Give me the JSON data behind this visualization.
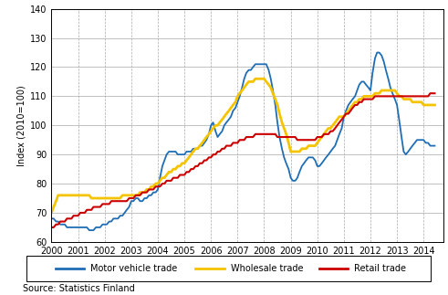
{
  "title": "",
  "xlabel": "",
  "ylabel": "Index (2010=100)",
  "source": "Source: Statistics Finland",
  "ylim": [
    60,
    140
  ],
  "yticks": [
    60,
    70,
    80,
    90,
    100,
    110,
    120,
    130,
    140
  ],
  "xlim": [
    2000,
    2014.75
  ],
  "xtick_years": [
    2000,
    2001,
    2002,
    2003,
    2004,
    2005,
    2006,
    2007,
    2008,
    2009,
    2010,
    2011,
    2012,
    2013,
    2014
  ],
  "motor_vehicle_color": "#1f6eb5",
  "wholesale_color": "#f5c400",
  "retail_color": "#cc0000",
  "motor_vehicle_x": [
    2000.0,
    2000.08,
    2000.17,
    2000.25,
    2000.33,
    2000.42,
    2000.5,
    2000.58,
    2000.67,
    2000.75,
    2000.83,
    2000.92,
    2001.0,
    2001.08,
    2001.17,
    2001.25,
    2001.33,
    2001.42,
    2001.5,
    2001.58,
    2001.67,
    2001.75,
    2001.83,
    2001.92,
    2002.0,
    2002.08,
    2002.17,
    2002.25,
    2002.33,
    2002.42,
    2002.5,
    2002.58,
    2002.67,
    2002.75,
    2002.83,
    2002.92,
    2003.0,
    2003.08,
    2003.17,
    2003.25,
    2003.33,
    2003.42,
    2003.5,
    2003.58,
    2003.67,
    2003.75,
    2003.83,
    2003.92,
    2004.0,
    2004.08,
    2004.17,
    2004.25,
    2004.33,
    2004.42,
    2004.5,
    2004.58,
    2004.67,
    2004.75,
    2004.83,
    2004.92,
    2005.0,
    2005.08,
    2005.17,
    2005.25,
    2005.33,
    2005.42,
    2005.5,
    2005.58,
    2005.67,
    2005.75,
    2005.83,
    2005.92,
    2006.0,
    2006.08,
    2006.17,
    2006.25,
    2006.33,
    2006.42,
    2006.5,
    2006.58,
    2006.67,
    2006.75,
    2006.83,
    2006.92,
    2007.0,
    2007.08,
    2007.17,
    2007.25,
    2007.33,
    2007.42,
    2007.5,
    2007.58,
    2007.67,
    2007.75,
    2007.83,
    2007.92,
    2008.0,
    2008.08,
    2008.17,
    2008.25,
    2008.33,
    2008.42,
    2008.5,
    2008.58,
    2008.67,
    2008.75,
    2008.83,
    2008.92,
    2009.0,
    2009.08,
    2009.17,
    2009.25,
    2009.33,
    2009.42,
    2009.5,
    2009.58,
    2009.67,
    2009.75,
    2009.83,
    2009.92,
    2010.0,
    2010.08,
    2010.17,
    2010.25,
    2010.33,
    2010.42,
    2010.5,
    2010.58,
    2010.67,
    2010.75,
    2010.83,
    2010.92,
    2011.0,
    2011.08,
    2011.17,
    2011.25,
    2011.33,
    2011.42,
    2011.5,
    2011.58,
    2011.67,
    2011.75,
    2011.83,
    2011.92,
    2012.0,
    2012.08,
    2012.17,
    2012.25,
    2012.33,
    2012.42,
    2012.5,
    2012.58,
    2012.67,
    2012.75,
    2012.83,
    2012.92,
    2013.0,
    2013.08,
    2013.17,
    2013.25,
    2013.33,
    2013.42,
    2013.5,
    2013.58,
    2013.67,
    2013.75,
    2013.83,
    2013.92,
    2014.0,
    2014.08,
    2014.17,
    2014.25,
    2014.33,
    2014.42
  ],
  "motor_vehicle_y": [
    68,
    68,
    67,
    67,
    66,
    66,
    66,
    65,
    65,
    65,
    65,
    65,
    65,
    65,
    65,
    65,
    65,
    64,
    64,
    64,
    65,
    65,
    65,
    66,
    66,
    66,
    67,
    67,
    68,
    68,
    68,
    69,
    69,
    70,
    71,
    72,
    74,
    74,
    75,
    75,
    74,
    74,
    75,
    75,
    76,
    76,
    77,
    77,
    78,
    82,
    86,
    88,
    90,
    91,
    91,
    91,
    91,
    90,
    90,
    90,
    90,
    91,
    91,
    91,
    92,
    92,
    92,
    93,
    93,
    94,
    95,
    97,
    100,
    101,
    98,
    96,
    97,
    98,
    100,
    101,
    102,
    103,
    105,
    106,
    108,
    110,
    113,
    116,
    118,
    119,
    119,
    120,
    121,
    121,
    121,
    121,
    121,
    121,
    119,
    116,
    112,
    107,
    101,
    96,
    92,
    89,
    87,
    85,
    82,
    81,
    81,
    82,
    84,
    86,
    87,
    88,
    89,
    89,
    89,
    88,
    86,
    86,
    87,
    88,
    89,
    90,
    91,
    92,
    93,
    95,
    97,
    99,
    103,
    105,
    107,
    108,
    109,
    110,
    112,
    114,
    115,
    115,
    114,
    113,
    112,
    118,
    123,
    125,
    125,
    124,
    122,
    119,
    116,
    113,
    111,
    109,
    107,
    102,
    96,
    91,
    90,
    91,
    92,
    93,
    94,
    95,
    95,
    95,
    95,
    94,
    94,
    93,
    93,
    93
  ],
  "wholesale_x": [
    2000.0,
    2000.08,
    2000.17,
    2000.25,
    2000.33,
    2000.42,
    2000.5,
    2000.58,
    2000.67,
    2000.75,
    2000.83,
    2000.92,
    2001.0,
    2001.08,
    2001.17,
    2001.25,
    2001.33,
    2001.42,
    2001.5,
    2001.58,
    2001.67,
    2001.75,
    2001.83,
    2001.92,
    2002.0,
    2002.08,
    2002.17,
    2002.25,
    2002.33,
    2002.42,
    2002.5,
    2002.58,
    2002.67,
    2002.75,
    2002.83,
    2002.92,
    2003.0,
    2003.08,
    2003.17,
    2003.25,
    2003.33,
    2003.42,
    2003.5,
    2003.58,
    2003.67,
    2003.75,
    2003.83,
    2003.92,
    2004.0,
    2004.08,
    2004.17,
    2004.25,
    2004.33,
    2004.42,
    2004.5,
    2004.58,
    2004.67,
    2004.75,
    2004.83,
    2004.92,
    2005.0,
    2005.08,
    2005.17,
    2005.25,
    2005.33,
    2005.42,
    2005.5,
    2005.58,
    2005.67,
    2005.75,
    2005.83,
    2005.92,
    2006.0,
    2006.08,
    2006.17,
    2006.25,
    2006.33,
    2006.42,
    2006.5,
    2006.58,
    2006.67,
    2006.75,
    2006.83,
    2006.92,
    2007.0,
    2007.08,
    2007.17,
    2007.25,
    2007.33,
    2007.42,
    2007.5,
    2007.58,
    2007.67,
    2007.75,
    2007.83,
    2007.92,
    2008.0,
    2008.08,
    2008.17,
    2008.25,
    2008.33,
    2008.42,
    2008.5,
    2008.58,
    2008.67,
    2008.75,
    2008.83,
    2008.92,
    2009.0,
    2009.08,
    2009.17,
    2009.25,
    2009.33,
    2009.42,
    2009.5,
    2009.58,
    2009.67,
    2009.75,
    2009.83,
    2009.92,
    2010.0,
    2010.08,
    2010.17,
    2010.25,
    2010.33,
    2010.42,
    2010.5,
    2010.58,
    2010.67,
    2010.75,
    2010.83,
    2010.92,
    2011.0,
    2011.08,
    2011.17,
    2011.25,
    2011.33,
    2011.42,
    2011.5,
    2011.58,
    2011.67,
    2011.75,
    2011.83,
    2011.92,
    2012.0,
    2012.08,
    2012.17,
    2012.25,
    2012.33,
    2012.42,
    2012.5,
    2012.58,
    2012.67,
    2012.75,
    2012.83,
    2012.92,
    2013.0,
    2013.08,
    2013.17,
    2013.25,
    2013.33,
    2013.42,
    2013.5,
    2013.58,
    2013.67,
    2013.75,
    2013.83,
    2013.92,
    2014.0,
    2014.08,
    2014.17,
    2014.25,
    2014.33,
    2014.42
  ],
  "wholesale_y": [
    70,
    72,
    74,
    76,
    76,
    76,
    76,
    76,
    76,
    76,
    76,
    76,
    76,
    76,
    76,
    76,
    76,
    76,
    75,
    75,
    75,
    75,
    75,
    75,
    75,
    75,
    75,
    75,
    75,
    75,
    75,
    75,
    76,
    76,
    76,
    76,
    76,
    76,
    76,
    76,
    77,
    77,
    77,
    78,
    78,
    79,
    79,
    80,
    80,
    81,
    82,
    82,
    83,
    84,
    84,
    85,
    85,
    86,
    86,
    87,
    87,
    88,
    89,
    90,
    91,
    92,
    92,
    93,
    94,
    95,
    96,
    97,
    98,
    99,
    100,
    100,
    101,
    102,
    103,
    104,
    105,
    106,
    107,
    108,
    110,
    111,
    112,
    113,
    114,
    115,
    115,
    115,
    116,
    116,
    116,
    116,
    116,
    115,
    114,
    113,
    111,
    109,
    107,
    104,
    101,
    99,
    97,
    94,
    91,
    91,
    91,
    91,
    91,
    92,
    92,
    92,
    93,
    93,
    93,
    93,
    94,
    95,
    96,
    97,
    98,
    99,
    99,
    100,
    101,
    102,
    103,
    103,
    103,
    104,
    105,
    106,
    107,
    108,
    108,
    109,
    109,
    110,
    110,
    110,
    110,
    110,
    111,
    111,
    111,
    112,
    112,
    112,
    112,
    112,
    112,
    112,
    111,
    110,
    110,
    109,
    109,
    109,
    109,
    108,
    108,
    108,
    108,
    108,
    107,
    107,
    107,
    107,
    107,
    107
  ],
  "retail_x": [
    2000.0,
    2000.08,
    2000.17,
    2000.25,
    2000.33,
    2000.42,
    2000.5,
    2000.58,
    2000.67,
    2000.75,
    2000.83,
    2000.92,
    2001.0,
    2001.08,
    2001.17,
    2001.25,
    2001.33,
    2001.42,
    2001.5,
    2001.58,
    2001.67,
    2001.75,
    2001.83,
    2001.92,
    2002.0,
    2002.08,
    2002.17,
    2002.25,
    2002.33,
    2002.42,
    2002.5,
    2002.58,
    2002.67,
    2002.75,
    2002.83,
    2002.92,
    2003.0,
    2003.08,
    2003.17,
    2003.25,
    2003.33,
    2003.42,
    2003.5,
    2003.58,
    2003.67,
    2003.75,
    2003.83,
    2003.92,
    2004.0,
    2004.08,
    2004.17,
    2004.25,
    2004.33,
    2004.42,
    2004.5,
    2004.58,
    2004.67,
    2004.75,
    2004.83,
    2004.92,
    2005.0,
    2005.08,
    2005.17,
    2005.25,
    2005.33,
    2005.42,
    2005.5,
    2005.58,
    2005.67,
    2005.75,
    2005.83,
    2005.92,
    2006.0,
    2006.08,
    2006.17,
    2006.25,
    2006.33,
    2006.42,
    2006.5,
    2006.58,
    2006.67,
    2006.75,
    2006.83,
    2006.92,
    2007.0,
    2007.08,
    2007.17,
    2007.25,
    2007.33,
    2007.42,
    2007.5,
    2007.58,
    2007.67,
    2007.75,
    2007.83,
    2007.92,
    2008.0,
    2008.08,
    2008.17,
    2008.25,
    2008.33,
    2008.42,
    2008.5,
    2008.58,
    2008.67,
    2008.75,
    2008.83,
    2008.92,
    2009.0,
    2009.08,
    2009.17,
    2009.25,
    2009.33,
    2009.42,
    2009.5,
    2009.58,
    2009.67,
    2009.75,
    2009.83,
    2009.92,
    2010.0,
    2010.08,
    2010.17,
    2010.25,
    2010.33,
    2010.42,
    2010.5,
    2010.58,
    2010.67,
    2010.75,
    2010.83,
    2010.92,
    2011.0,
    2011.08,
    2011.17,
    2011.25,
    2011.33,
    2011.42,
    2011.5,
    2011.58,
    2011.67,
    2011.75,
    2011.83,
    2011.92,
    2012.0,
    2012.08,
    2012.17,
    2012.25,
    2012.33,
    2012.42,
    2012.5,
    2012.58,
    2012.67,
    2012.75,
    2012.83,
    2012.92,
    2013.0,
    2013.08,
    2013.17,
    2013.25,
    2013.33,
    2013.42,
    2013.5,
    2013.58,
    2013.67,
    2013.75,
    2013.83,
    2013.92,
    2014.0,
    2014.08,
    2014.17,
    2014.25,
    2014.33,
    2014.42
  ],
  "retail_y": [
    65,
    65,
    66,
    66,
    67,
    67,
    67,
    68,
    68,
    68,
    69,
    69,
    69,
    70,
    70,
    70,
    71,
    71,
    71,
    72,
    72,
    72,
    72,
    73,
    73,
    73,
    73,
    74,
    74,
    74,
    74,
    74,
    74,
    74,
    74,
    75,
    75,
    75,
    76,
    76,
    76,
    77,
    77,
    77,
    78,
    78,
    78,
    79,
    79,
    79,
    80,
    80,
    81,
    81,
    81,
    82,
    82,
    82,
    83,
    83,
    83,
    84,
    84,
    85,
    85,
    86,
    86,
    87,
    87,
    88,
    88,
    89,
    89,
    90,
    90,
    91,
    91,
    92,
    92,
    93,
    93,
    93,
    94,
    94,
    94,
    95,
    95,
    95,
    96,
    96,
    96,
    96,
    97,
    97,
    97,
    97,
    97,
    97,
    97,
    97,
    97,
    97,
    96,
    96,
    96,
    96,
    96,
    96,
    96,
    96,
    96,
    95,
    95,
    95,
    95,
    95,
    95,
    95,
    95,
    95,
    96,
    96,
    96,
    97,
    97,
    97,
    98,
    98,
    99,
    100,
    101,
    102,
    103,
    104,
    104,
    105,
    106,
    107,
    107,
    108,
    108,
    109,
    109,
    109,
    109,
    109,
    110,
    110,
    110,
    110,
    110,
    110,
    110,
    110,
    110,
    110,
    110,
    110,
    110,
    110,
    110,
    110,
    110,
    110,
    110,
    110,
    110,
    110,
    110,
    110,
    110,
    111,
    111,
    111
  ],
  "legend_labels": [
    "Motor vehicle trade",
    "Wholesale trade",
    "Retail trade"
  ],
  "legend_colors": [
    "#1f6eb5",
    "#f5c400",
    "#cc0000"
  ],
  "figsize": [
    4.91,
    3.23
  ],
  "dpi": 100
}
